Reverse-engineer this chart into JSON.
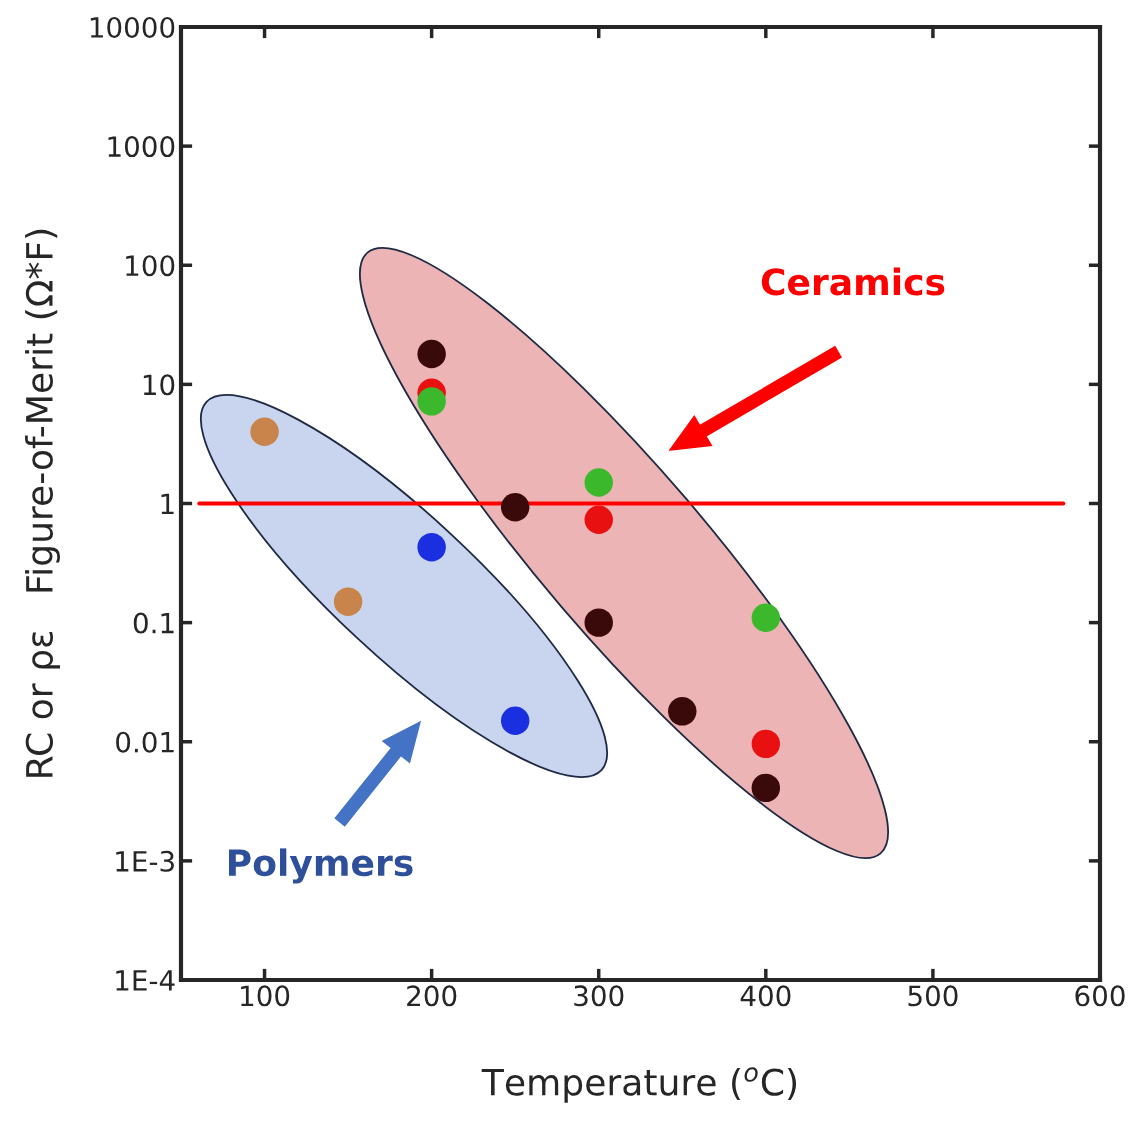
{
  "chart_data": {
    "type": "scatter",
    "xlabel": "Temperature ($^{o}$C)",
    "ylabel": "RC or ρε   Figure-of-Merit (Ω*F)",
    "log": "y",
    "grid": false,
    "legend": false,
    "marker": "circle",
    "xlim": [
      50,
      600
    ],
    "xticks": [
      100,
      200,
      300,
      400,
      500,
      600
    ],
    "ylim": [
      0.0001,
      10000
    ],
    "yticks": [
      {
        "value": 0.0001,
        "label": "1E-4"
      },
      {
        "value": 0.001,
        "label": "1E-3"
      },
      0.01,
      0.1,
      1,
      10,
      100,
      1000,
      10000
    ],
    "annotations": [
      "Ceramics",
      "Polymers"
    ],
    "ref_lines": [
      {
        "axis": "y",
        "value": 1,
        "color": "#ff0000"
      }
    ],
    "series": [
      {
        "color": "#c8844a",
        "x": [
          100,
          150
        ],
        "values": [
          4.0,
          0.15
        ]
      },
      {
        "color": "#1a2fe0",
        "x": [
          200,
          250
        ],
        "values": [
          0.43,
          0.015
        ]
      },
      {
        "color": "#e81010",
        "x": [
          200,
          300,
          400
        ],
        "values": [
          8.5,
          0.73,
          0.0096
        ]
      },
      {
        "color": "#3cb82c",
        "x": [
          200,
          300,
          400
        ],
        "values": [
          7.2,
          1.5,
          0.11
        ]
      },
      {
        "color": "#3a0a0a",
        "x": [
          200,
          250,
          300,
          350,
          400
        ],
        "values": [
          18,
          0.93,
          0.1,
          0.018,
          0.0041
        ]
      }
    ]
  }
}
